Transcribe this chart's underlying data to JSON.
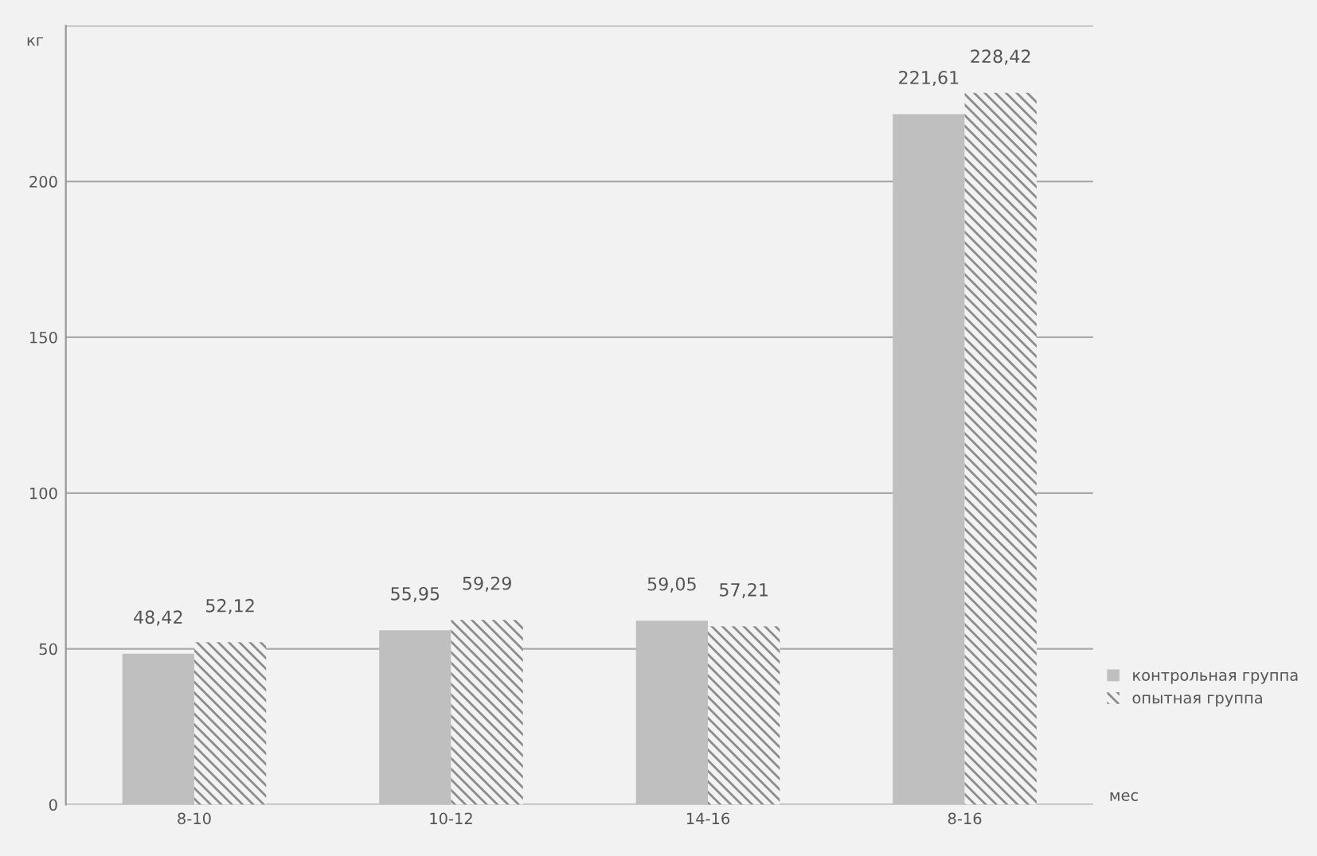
{
  "chart_data": {
    "type": "bar",
    "ylabel": "кг",
    "xlabel": "мес",
    "categories": [
      "8-10",
      "10-12",
      "14-16",
      "8-16"
    ],
    "series": [
      {
        "name": "контрольная группа",
        "color": "#bfbfbf",
        "values": [
          48.42,
          55.95,
          59.05,
          221.61
        ],
        "value_labels": [
          "48,42",
          "55,95",
          "59,05",
          "221,61"
        ]
      },
      {
        "name": "опытная группа",
        "color": "#8c8c8c",
        "values": [
          52.12,
          59.29,
          57.21,
          228.42
        ],
        "value_labels": [
          "52,12",
          "59,29",
          "57,21",
          "228,42"
        ]
      }
    ],
    "ylim": [
      0,
      250
    ],
    "yticks": [
      0,
      50,
      100,
      150,
      200,
      {
        "value": 250,
        "label": null
      }
    ],
    "grid": "y",
    "legend": "right"
  }
}
